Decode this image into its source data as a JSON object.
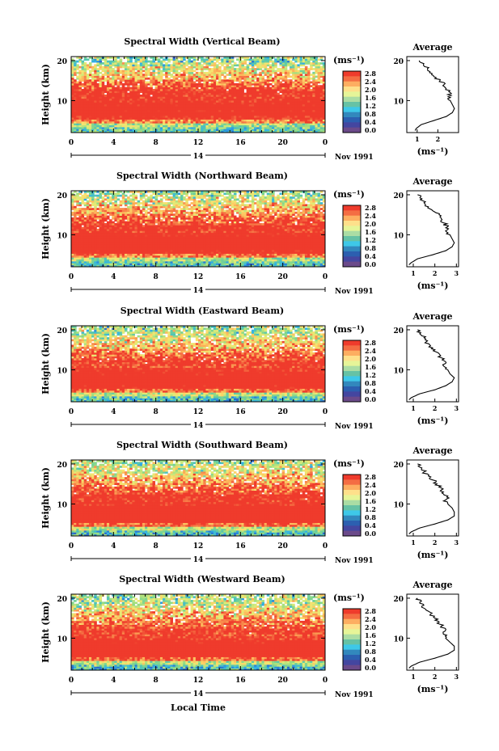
{
  "figure": {
    "xlabel": "Local Time",
    "date_label": "Nov 1991",
    "day_label": "14",
    "unit_label": "(ms⁻¹)",
    "height_label": "Height (km)",
    "average_title": "Average",
    "colorbar_ticks": [
      "2.8",
      "2.4",
      "2.0",
      "1.6",
      "1.2",
      "0.8",
      "0.4",
      "0.0"
    ],
    "colorbar_colors": [
      "#ef3b2c",
      "#f46d43",
      "#fdae61",
      "#fee08b",
      "#e6f598",
      "#abdda4",
      "#66c2a5",
      "#3ec8e8",
      "#3288bd",
      "#2c5fb0",
      "#4446a0",
      "#6b4a8a"
    ],
    "colors": {
      "high": "#ef3b2c",
      "mid": "#fee08b",
      "low": "#3288bd",
      "lowest": "#5a3a8a"
    }
  },
  "chart_data": [
    {
      "type": "heatmap",
      "title": "Spectral Width (Vertical Beam)",
      "xlabel": "Local Time",
      "ylabel": "Height (km)",
      "xticks": [
        "0",
        "4",
        "8",
        "12",
        "16",
        "20",
        "0"
      ],
      "yticks": [
        "20",
        "10"
      ],
      "xlim": [
        0,
        24
      ],
      "ylim": [
        2,
        21
      ],
      "colorbar": {
        "label": "(ms⁻¹)",
        "range": [
          0.0,
          2.8
        ]
      },
      "average": {
        "title": "Average",
        "xlabel": "(ms⁻¹)",
        "xticks": [
          "1",
          "2"
        ],
        "xlim": [
          0.5,
          3.0
        ],
        "profile": [
          [
            0.9,
            2.5
          ],
          [
            0.95,
            3
          ],
          [
            1.2,
            4
          ],
          [
            1.8,
            5
          ],
          [
            2.4,
            6
          ],
          [
            2.7,
            7
          ],
          [
            2.8,
            8
          ],
          [
            2.7,
            9
          ],
          [
            2.6,
            10
          ],
          [
            2.5,
            11
          ],
          [
            2.6,
            12
          ],
          [
            2.4,
            13
          ],
          [
            2.3,
            14
          ],
          [
            2.1,
            15
          ],
          [
            1.8,
            16
          ],
          [
            1.6,
            17
          ],
          [
            1.5,
            18
          ],
          [
            1.3,
            19
          ],
          [
            1.1,
            20
          ]
        ]
      }
    },
    {
      "type": "heatmap",
      "title": "Spectral Width (Northward Beam)",
      "xlabel": "Local Time",
      "ylabel": "Height (km)",
      "xticks": [
        "0",
        "4",
        "8",
        "12",
        "16",
        "20",
        "0"
      ],
      "yticks": [
        "20",
        "10"
      ],
      "xlim": [
        0,
        24
      ],
      "ylim": [
        2,
        21
      ],
      "colorbar": {
        "label": "(ms⁻¹)",
        "range": [
          0.0,
          2.8
        ]
      },
      "average": {
        "title": "Average",
        "xlabel": "(ms⁻¹)",
        "xticks": [
          "1",
          "2",
          "3"
        ],
        "xlim": [
          0.7,
          3.1
        ],
        "profile": [
          [
            0.8,
            2.5
          ],
          [
            0.9,
            3
          ],
          [
            1.2,
            4
          ],
          [
            1.9,
            5
          ],
          [
            2.5,
            6
          ],
          [
            2.8,
            7
          ],
          [
            2.9,
            8
          ],
          [
            2.8,
            9
          ],
          [
            2.7,
            10
          ],
          [
            2.5,
            11
          ],
          [
            2.6,
            12
          ],
          [
            2.4,
            13
          ],
          [
            2.3,
            14
          ],
          [
            2.2,
            15
          ],
          [
            1.9,
            16
          ],
          [
            1.7,
            17
          ],
          [
            1.5,
            18
          ],
          [
            1.4,
            19
          ],
          [
            1.2,
            20
          ]
        ]
      }
    },
    {
      "type": "heatmap",
      "title": "Spectral Width (Eastward Beam)",
      "xlabel": "Local Time",
      "ylabel": "Height (km)",
      "xticks": [
        "0",
        "4",
        "8",
        "12",
        "16",
        "20",
        "0"
      ],
      "yticks": [
        "20",
        "10"
      ],
      "xlim": [
        0,
        24
      ],
      "ylim": [
        2,
        21
      ],
      "colorbar": {
        "label": "(ms⁻¹)",
        "range": [
          0.0,
          2.8
        ]
      },
      "average": {
        "title": "Average",
        "xlabel": "(ms⁻¹)",
        "xticks": [
          "1",
          "2",
          "3"
        ],
        "xlim": [
          0.7,
          3.1
        ],
        "profile": [
          [
            0.8,
            2.5
          ],
          [
            0.9,
            3
          ],
          [
            1.3,
            4
          ],
          [
            2.0,
            5
          ],
          [
            2.5,
            6
          ],
          [
            2.8,
            7
          ],
          [
            2.9,
            8
          ],
          [
            2.7,
            9
          ],
          [
            2.6,
            10
          ],
          [
            2.4,
            11
          ],
          [
            2.5,
            12
          ],
          [
            2.3,
            13
          ],
          [
            2.2,
            14
          ],
          [
            2.0,
            15
          ],
          [
            1.8,
            16
          ],
          [
            1.6,
            17
          ],
          [
            1.5,
            18
          ],
          [
            1.3,
            19
          ],
          [
            1.2,
            20
          ]
        ]
      }
    },
    {
      "type": "heatmap",
      "title": "Spectral Width (Southward Beam)",
      "xlabel": "Local Time",
      "ylabel": "Height (km)",
      "xticks": [
        "0",
        "4",
        "8",
        "12",
        "16",
        "20",
        "0"
      ],
      "yticks": [
        "20",
        "10"
      ],
      "xlim": [
        0,
        24
      ],
      "ylim": [
        2,
        21
      ],
      "colorbar": {
        "label": "(ms⁻¹)",
        "range": [
          0.0,
          2.8
        ]
      },
      "average": {
        "title": "Average",
        "xlabel": "(ms⁻¹)",
        "xticks": [
          "1",
          "2",
          "3"
        ],
        "xlim": [
          0.7,
          3.1
        ],
        "profile": [
          [
            0.8,
            2.5
          ],
          [
            0.9,
            3
          ],
          [
            1.3,
            4
          ],
          [
            2.0,
            5
          ],
          [
            2.6,
            6
          ],
          [
            2.9,
            7
          ],
          [
            2.9,
            8
          ],
          [
            2.8,
            9
          ],
          [
            2.6,
            10
          ],
          [
            2.5,
            11
          ],
          [
            2.6,
            12
          ],
          [
            2.4,
            13
          ],
          [
            2.3,
            14
          ],
          [
            2.1,
            15
          ],
          [
            1.9,
            16
          ],
          [
            1.7,
            17
          ],
          [
            1.5,
            18
          ],
          [
            1.4,
            19
          ],
          [
            1.2,
            20
          ]
        ]
      }
    },
    {
      "type": "heatmap",
      "title": "Spectral Width (Westward Beam)",
      "xlabel": "Local Time",
      "ylabel": "Height (km)",
      "xticks": [
        "0",
        "4",
        "8",
        "12",
        "16",
        "20",
        "0"
      ],
      "yticks": [
        "20",
        "10"
      ],
      "xlim": [
        0,
        24
      ],
      "ylim": [
        2,
        21
      ],
      "colorbar": {
        "label": "(ms⁻¹)",
        "range": [
          0.0,
          2.8
        ]
      },
      "average": {
        "title": "Average",
        "xlabel": "(ms⁻¹)",
        "xticks": [
          "1",
          "2",
          "3"
        ],
        "xlim": [
          0.7,
          3.1
        ],
        "profile": [
          [
            0.8,
            2.5
          ],
          [
            0.9,
            3
          ],
          [
            1.3,
            4
          ],
          [
            2.0,
            5
          ],
          [
            2.6,
            6
          ],
          [
            2.9,
            7
          ],
          [
            2.9,
            8
          ],
          [
            2.7,
            9
          ],
          [
            2.5,
            10
          ],
          [
            2.4,
            11
          ],
          [
            2.5,
            12
          ],
          [
            2.3,
            13
          ],
          [
            2.2,
            14
          ],
          [
            2.0,
            15
          ],
          [
            1.8,
            16
          ],
          [
            1.6,
            17
          ],
          [
            1.4,
            18
          ],
          [
            1.3,
            19
          ],
          [
            1.2,
            20
          ]
        ]
      }
    }
  ]
}
